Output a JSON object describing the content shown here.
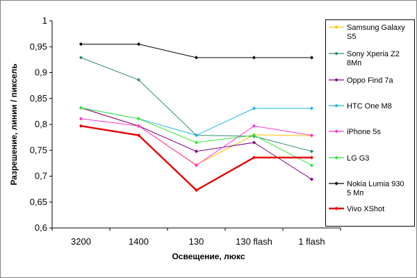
{
  "chart_data": {
    "type": "line",
    "categories": [
      "3200",
      "1400",
      "130",
      "130 flash",
      "1 flash"
    ],
    "xlabel": "Освещение, люкс",
    "ylabel": "Разрешение, линии / пиксель",
    "ylim": [
      0.6,
      1.0
    ],
    "yticks": [
      "0,6",
      "0,65",
      "0,7",
      "0,75",
      "0,8",
      "0,85",
      "0,9",
      "0,95",
      "1"
    ],
    "grid": false,
    "legend_position": "right",
    "series": [
      {
        "name_lines": [
          "Samsung Galaxy",
          "S5"
        ],
        "color": "#ffc000",
        "values": [
          0.832,
          0.797,
          0.722,
          0.78,
          0.778
        ]
      },
      {
        "name_lines": [
          "Sony Xperia Z2",
          "8Мп"
        ],
        "color": "#2e8b70",
        "values": [
          0.929,
          0.886,
          0.779,
          0.777,
          0.748
        ]
      },
      {
        "name_lines": [
          "Oppo Find 7a"
        ],
        "color": "#800080",
        "values": [
          0.832,
          0.797,
          0.748,
          0.765,
          0.694
        ]
      },
      {
        "name_lines": [
          "HTC One M8"
        ],
        "color": "#1ab3e6",
        "values": [
          0.832,
          0.811,
          0.779,
          0.831,
          0.831
        ]
      },
      {
        "name_lines": [
          "iPhone 5s"
        ],
        "color": "#ff33cc",
        "values": [
          0.811,
          0.797,
          0.721,
          0.797,
          0.779
        ]
      },
      {
        "name_lines": [
          "LG G3"
        ],
        "color": "#33e633",
        "values": [
          0.832,
          0.811,
          0.765,
          0.779,
          0.721
        ]
      },
      {
        "name_lines": [
          "Nokia Lumia 930",
          "5 Мп"
        ],
        "color": "#000000",
        "values": [
          0.955,
          0.955,
          0.929,
          0.929,
          0.929
        ]
      },
      {
        "name_lines": [
          "Vivo XShot"
        ],
        "color": "#e60000",
        "values": [
          0.797,
          0.779,
          0.673,
          0.736,
          0.736
        ],
        "bold": true
      }
    ]
  }
}
